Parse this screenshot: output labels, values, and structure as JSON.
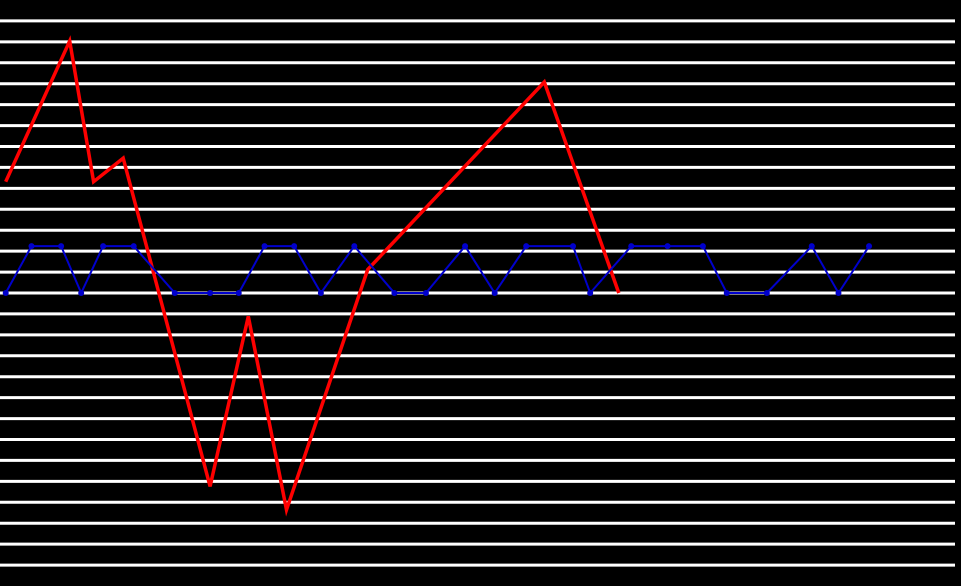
{
  "chart_data": {
    "type": "line",
    "title": "",
    "xlabel": "",
    "ylabel": "",
    "grid": true,
    "legend": "none",
    "xlim": [
      0,
      1
    ],
    "ylim": [
      0,
      1
    ],
    "colors": {
      "background": "#000000",
      "gridline": "#ffffff",
      "series_red": "#ff0000",
      "series_blue": "#0000cc"
    },
    "gridlines_y": [
      0.0357,
      0.0714,
      0.1071,
      0.1429,
      0.1786,
      0.2143,
      0.25,
      0.2857,
      0.3214,
      0.3571,
      0.3929,
      0.4286,
      0.4643,
      0.5,
      0.5357,
      0.5714,
      0.6071,
      0.6429,
      0.6786,
      0.7143,
      0.75,
      0.7857,
      0.8214,
      0.8571,
      0.8929,
      0.9286,
      0.9643
    ],
    "series": [
      {
        "color": "#ff0000",
        "markers": false,
        "points": [
          [
            0.006,
            0.69
          ],
          [
            0.073,
            0.93
          ],
          [
            0.098,
            0.69
          ],
          [
            0.129,
            0.73
          ],
          [
            0.22,
            0.17
          ],
          [
            0.26,
            0.46
          ],
          [
            0.3,
            0.13
          ],
          [
            0.385,
            0.54
          ],
          [
            0.57,
            0.86
          ],
          [
            0.648,
            0.5
          ]
        ]
      },
      {
        "color": "#0000cc",
        "markers": true,
        "points": [
          [
            0.006,
            0.5
          ],
          [
            0.033,
            0.58
          ],
          [
            0.064,
            0.58
          ],
          [
            0.085,
            0.5
          ],
          [
            0.108,
            0.58
          ],
          [
            0.14,
            0.58
          ],
          [
            0.183,
            0.5
          ],
          [
            0.22,
            0.5
          ],
          [
            0.25,
            0.5
          ],
          [
            0.277,
            0.58
          ],
          [
            0.308,
            0.58
          ],
          [
            0.336,
            0.5
          ],
          [
            0.371,
            0.58
          ],
          [
            0.413,
            0.5
          ],
          [
            0.446,
            0.5
          ],
          [
            0.487,
            0.58
          ],
          [
            0.518,
            0.5
          ],
          [
            0.551,
            0.58
          ],
          [
            0.6,
            0.58
          ],
          [
            0.618,
            0.5
          ],
          [
            0.661,
            0.58
          ],
          [
            0.699,
            0.58
          ],
          [
            0.736,
            0.58
          ],
          [
            0.761,
            0.5
          ],
          [
            0.803,
            0.5
          ],
          [
            0.85,
            0.58
          ],
          [
            0.878,
            0.5
          ],
          [
            0.91,
            0.58
          ]
        ]
      }
    ]
  }
}
